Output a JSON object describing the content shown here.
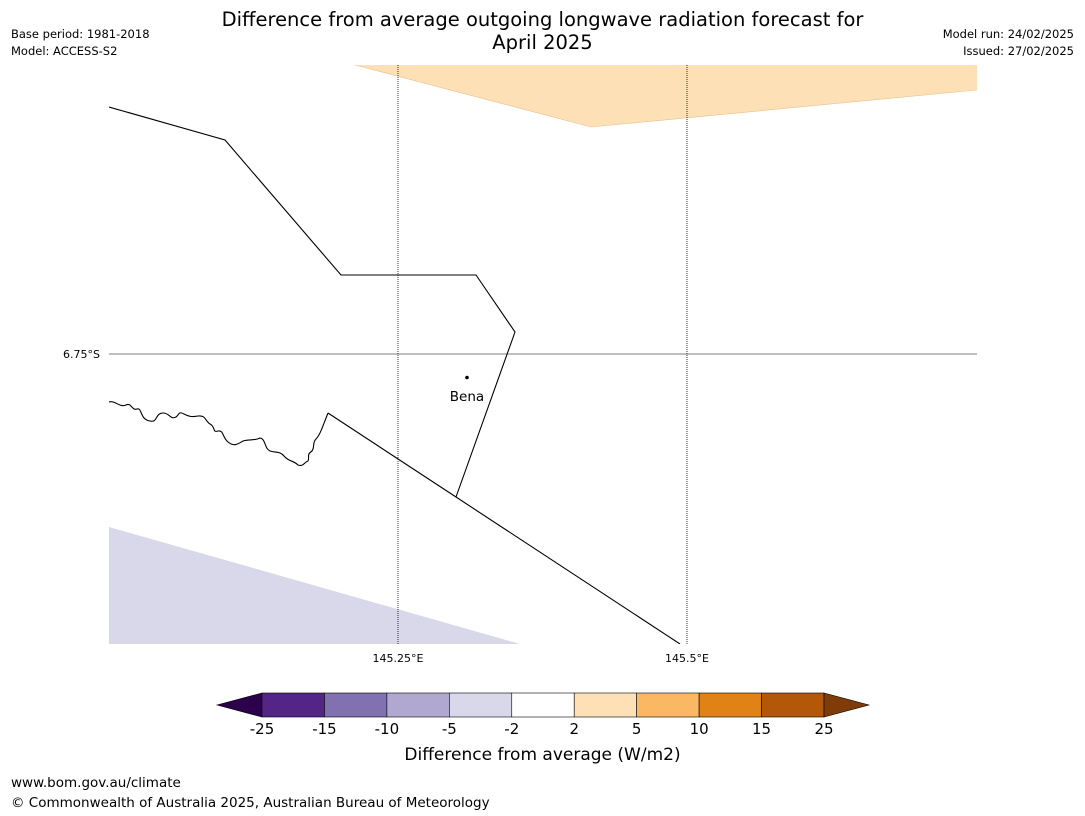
{
  "header": {
    "title_line1": "Difference from average outgoing longwave radiation forecast for",
    "title_line2": "April 2025",
    "base_period": "Base period: 1981-2018",
    "model": "Model: ACCESS-S2",
    "model_run": "Model run: 24/02/2025",
    "issued": "Issued: 27/02/2025"
  },
  "map": {
    "lat_label": "6.75°S",
    "lon_labels": [
      "145.25°E",
      "145.5°E"
    ],
    "place_name": "Bena",
    "anomaly_areas": [
      {
        "category": "2 to 5",
        "color": "#fde0b6"
      },
      {
        "category": "-5 to -2",
        "color": "#d8d8ea"
      }
    ]
  },
  "colorbar": {
    "title": "Difference from average (W/m2)",
    "ticks": [
      "-25",
      "-15",
      "-10",
      "-5",
      "-2",
      "2",
      "5",
      "10",
      "15",
      "25"
    ],
    "colors": [
      "#552487",
      "#8171b0",
      "#b1a8d2",
      "#d8d8ea",
      "#ffffff",
      "#fde0b6",
      "#fbb862",
      "#e08216",
      "#b25808"
    ],
    "under_color": "#2d004b",
    "over_color": "#7f3b08"
  },
  "footer": {
    "url": "www.bom.gov.au/climate",
    "copyright": "© Commonwealth of Australia 2025, Australian Bureau of Meteorology"
  }
}
